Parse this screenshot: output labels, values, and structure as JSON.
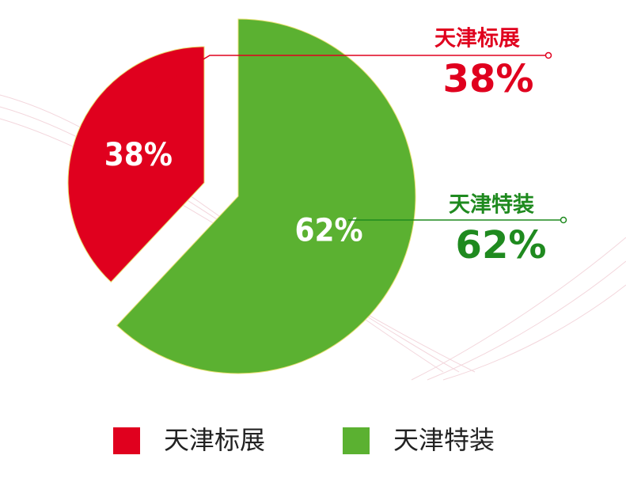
{
  "chart_data": {
    "type": "pie",
    "categories": [
      "天津标展",
      "天津特装"
    ],
    "values": [
      38,
      62
    ],
    "value_labels": [
      "38%",
      "62%"
    ],
    "colors": [
      "#e0001e",
      "#5bb131"
    ],
    "label_colors": [
      "#e0001e",
      "#1f8a1f"
    ],
    "legend": "bottom"
  }
}
